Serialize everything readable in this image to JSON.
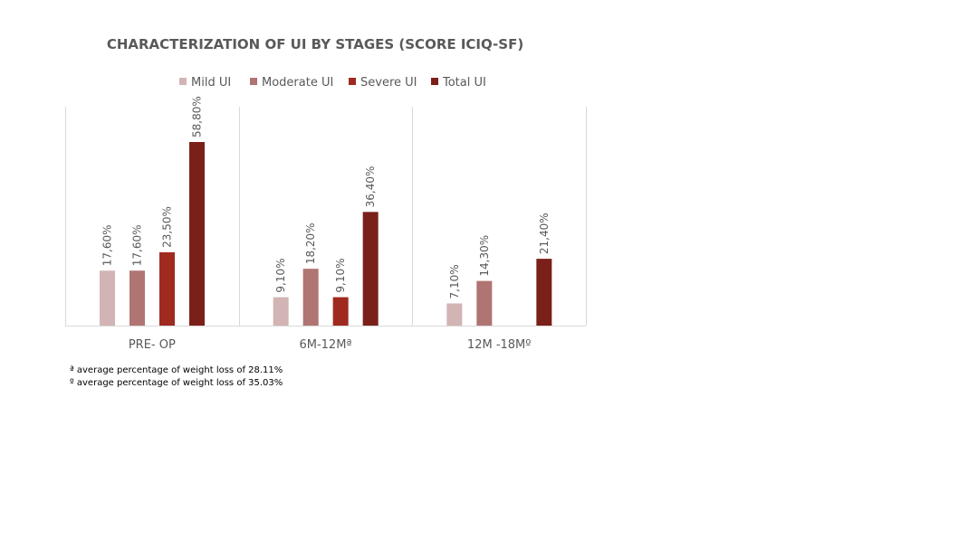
{
  "chart_data": {
    "type": "bar",
    "title": "CHARACTERIZATION OF UI BY STAGES (SCORE ICIQ-SF)",
    "categories": [
      "PRE- OP",
      "6M-12Mª",
      "12M -18Mº"
    ],
    "series": [
      {
        "name": "Mild UI",
        "color": "#d2b4b4",
        "values": [
          17.6,
          9.1,
          7.1
        ],
        "labels": [
          "17,60%",
          "9,10%",
          "7,10%"
        ]
      },
      {
        "name": "Moderate UI",
        "color": "#b07472",
        "values": [
          17.6,
          18.2,
          14.3
        ],
        "labels": [
          "17,60%",
          "18,20%",
          "14,30%"
        ]
      },
      {
        "name": "Severe UI",
        "color": "#9e2a20",
        "values": [
          23.5,
          9.1,
          null
        ],
        "labels": [
          "23,50%",
          "9,10%",
          ""
        ]
      },
      {
        "name": "Total UI",
        "color": "#7a2019",
        "values": [
          58.8,
          36.4,
          21.4
        ],
        "labels": [
          "58,80%",
          "36,40%",
          "21,40%"
        ]
      }
    ],
    "ylim": [
      0,
      70
    ],
    "grid": false,
    "legend_position": "top",
    "footnotes": [
      "ª average percentage of weight loss of 28.11%",
      "º average percentage of weight loss of 35.03%"
    ]
  }
}
